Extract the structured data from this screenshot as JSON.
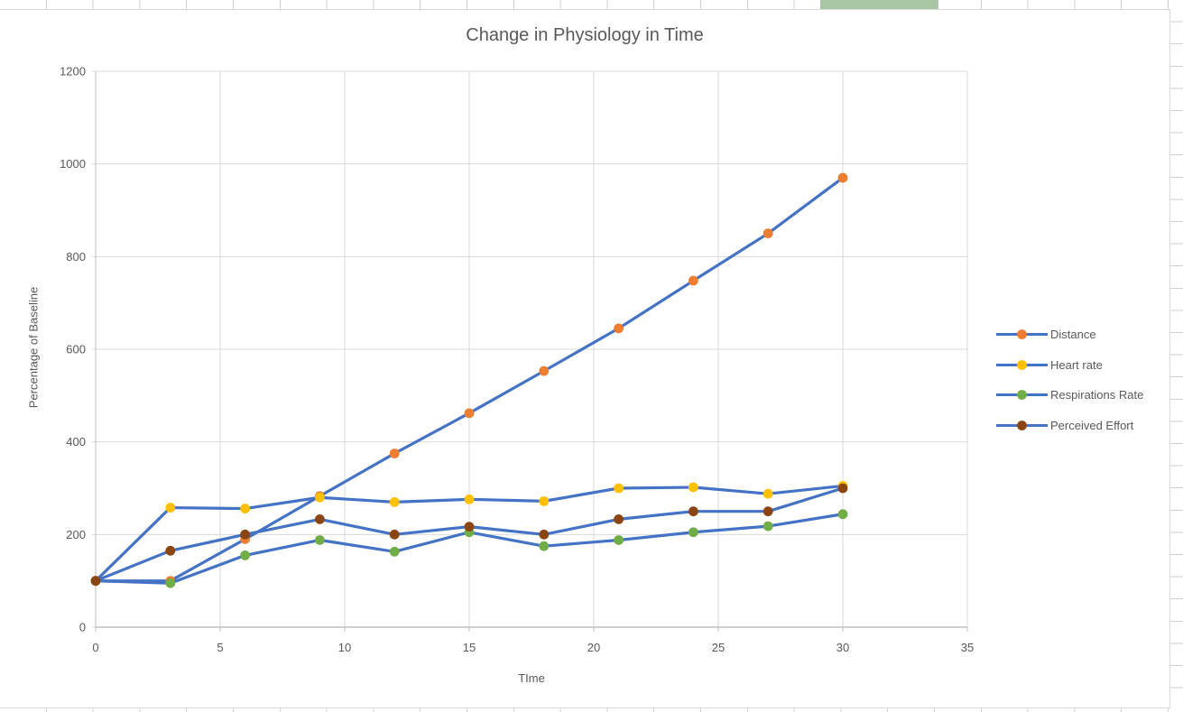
{
  "sheet": {
    "selected_range_color": "#a9c6a4",
    "gridline_color": "#cfcfcf"
  },
  "chart_data": {
    "type": "line",
    "title": "Change in Physiology in Time",
    "xlabel": "TIme",
    "ylabel": "Percentage of Baseline",
    "x": [
      0,
      3,
      6,
      9,
      12,
      15,
      18,
      21,
      24,
      27,
      30
    ],
    "series": [
      {
        "name": "Distance",
        "marker_color": "#ED7D31",
        "values": [
          100,
          100,
          190,
          283,
          375,
          462,
          553,
          645,
          748,
          850,
          970
        ]
      },
      {
        "name": "Heart rate",
        "marker_color": "#FFC000",
        "values": [
          100,
          258,
          256,
          280,
          270,
          276,
          272,
          300,
          302,
          288,
          305
        ]
      },
      {
        "name": "Respirations Rate",
        "marker_color": "#70AD47",
        "values": [
          100,
          95,
          155,
          188,
          163,
          205,
          175,
          188,
          205,
          218,
          244
        ]
      },
      {
        "name": "Perceived Effort",
        "marker_color": "#8B4513",
        "values": [
          100,
          165,
          200,
          233,
          200,
          217,
          200,
          233,
          250,
          250,
          300
        ]
      }
    ],
    "line_color": "#4472C4",
    "xlim": [
      0,
      35
    ],
    "ylim": [
      0,
      1200
    ],
    "x_ticks": [
      0,
      5,
      10,
      15,
      20,
      25,
      30,
      35
    ],
    "y_ticks": [
      0,
      200,
      400,
      600,
      800,
      1000,
      1200
    ],
    "grid": true,
    "legend_position": "right",
    "colors": {
      "gridline": "#d9d9d9",
      "axis_line": "#bfbfbf",
      "text": "#595959"
    }
  }
}
